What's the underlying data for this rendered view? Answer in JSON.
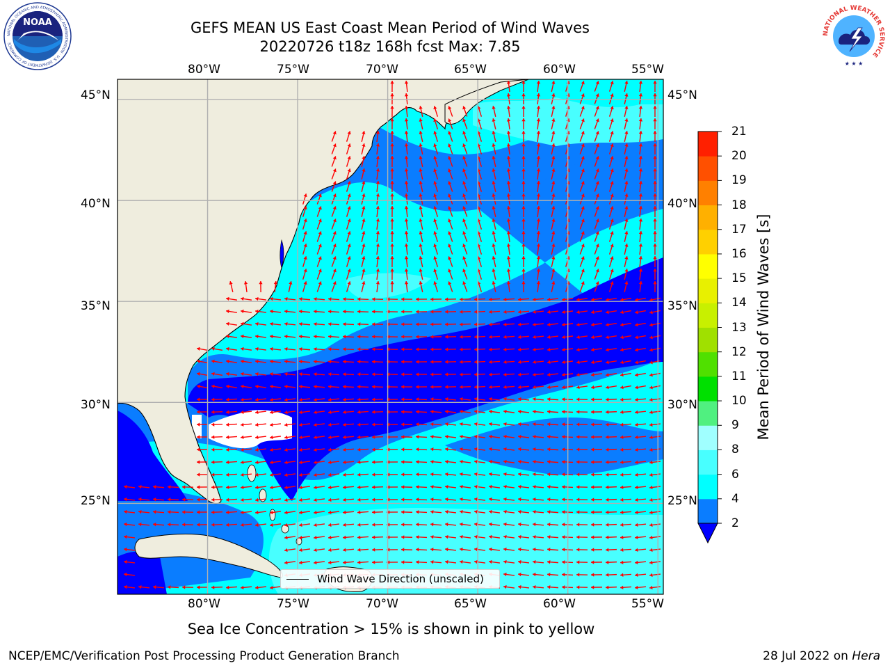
{
  "title": {
    "line1": "GEFS MEAN US East Coast Mean Period of Wind Waves",
    "line2": "20220726 t18z 168h fcst   Max: 7.85"
  },
  "logos": {
    "left": {
      "name": "NOAA",
      "text": "NOAA",
      "ring_text": "NATIONAL OCEANIC AND ATMOSPHERIC ADMINISTRATION · U.S. DEPARTMENT OF COMMERCE"
    },
    "right": {
      "name": "National Weather Service",
      "ring_text": "NATIONAL WEATHER SERVICE"
    }
  },
  "map": {
    "lon_labels": [
      "80°W",
      "75°W",
      "70°W",
      "65°W",
      "60°W",
      "55°W"
    ],
    "lat_labels": [
      "45°N",
      "40°N",
      "35°N",
      "30°N",
      "25°N"
    ],
    "lon_range": [
      -85,
      -54.7
    ],
    "lat_range": [
      20.5,
      46
    ],
    "legend_label": "Wind Wave Direction (unscaled)",
    "land_color": "#efedde",
    "coastline_color": "#000000",
    "arrow_color": "#ff0000",
    "grid_color": "#b0b0b0"
  },
  "colorbar": {
    "title": "Mean Period of Wind Waves [s]",
    "ticks": [
      "2",
      "4",
      "6",
      "8",
      "9",
      "10",
      "11",
      "12",
      "13",
      "14",
      "15",
      "16",
      "17",
      "18",
      "19",
      "20",
      "21"
    ],
    "under_color": "#0000ff",
    "colors": [
      "#0a7dff",
      "#00ffff",
      "#48ffff",
      "#a0ffff",
      "#50f080",
      "#00e000",
      "#50e000",
      "#a0e000",
      "#c8f000",
      "#e8f000",
      "#ffff00",
      "#ffd000",
      "#ffb000",
      "#ff8000",
      "#ff5000",
      "#ff2000"
    ]
  },
  "note": "Sea Ice Concentration > 15% is shown in pink to yellow",
  "footer": {
    "left": "NCEP/EMC/Verification Post Processing Product Generation Branch",
    "right_prefix": "28 Jul 2022 on ",
    "right_machine": "Hera"
  }
}
